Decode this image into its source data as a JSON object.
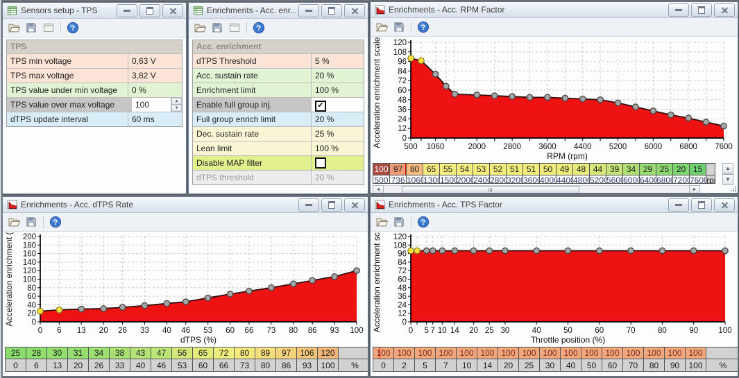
{
  "app": {
    "background": "#70747a"
  },
  "windows": {
    "sensors": {
      "title": "Sensors setup - TPS",
      "toolbar": [
        "open-file",
        "save-file",
        "window-view",
        "help"
      ],
      "table": {
        "header": "TPS",
        "rows": [
          {
            "label": "TPS min voltage",
            "value": "0,63 V",
            "bg": "#fbe3d6",
            "type": "text"
          },
          {
            "label": "TPS max voltage",
            "value": "3,82 V",
            "bg": "#fbe3d6",
            "type": "text"
          },
          {
            "label": "TPS value under min voltage",
            "value": "0 %",
            "bg": "#e1f3d3",
            "type": "text"
          },
          {
            "label": "TPS value over  max voltage",
            "value": "100",
            "bg": "#c6c6c6",
            "type": "spinner"
          },
          {
            "label": "dTPS update interval",
            "value": "60 ms",
            "bg": "#d9edf9",
            "type": "text"
          }
        ]
      }
    },
    "enrichment": {
      "title": "Enrichments - Acc. enr...",
      "toolbar": [
        "open-file",
        "save-file",
        "window-view",
        "help"
      ],
      "table": {
        "header": "Acc. enrichment",
        "rows": [
          {
            "label": "dTPS Threshold",
            "value": "5 %",
            "bg": "#fbe3d6",
            "type": "text"
          },
          {
            "label": "Acc. sustain rate",
            "value": "20 %",
            "bg": "#e1f3d3",
            "type": "text"
          },
          {
            "label": "Enrichment limit",
            "value": "100 %",
            "bg": "#e1f3d3",
            "type": "text"
          },
          {
            "label": "Enable full group inj.",
            "value": "checked",
            "bg": "#c6c6c6",
            "type": "checkbox-checked"
          },
          {
            "label": "Full group enrich limit",
            "value": "20 %",
            "bg": "#d9edf9",
            "type": "text"
          },
          {
            "label": "Dec. sustain rate",
            "value": "25 %",
            "bg": "#faf6d5",
            "type": "text"
          },
          {
            "label": "Lean limit",
            "value": "100 %",
            "bg": "#faf6d5",
            "type": "text"
          },
          {
            "label": "Disable MAP filter",
            "value": "unchecked",
            "bg": "#e2ef8d",
            "type": "checkbox-unchecked"
          },
          {
            "label": "dTPS threshold",
            "value": "20 %",
            "bg": "#ececec",
            "type": "disabled"
          }
        ]
      }
    },
    "rpm_factor": {
      "title": "Enrichments - Acc. RPM Factor",
      "toolbar": [
        "open-file",
        "save-file",
        "help"
      ]
    },
    "dtps_rate": {
      "title": "Enrichments - Acc. dTPS Rate",
      "toolbar": [
        "open-file",
        "save-file",
        "help"
      ]
    },
    "tps_factor": {
      "title": "Enrichments - Acc. TPS Factor",
      "toolbar": [
        "open-file",
        "save-file",
        "help"
      ]
    }
  },
  "chart_data": [
    {
      "id": "rpm",
      "type": "area",
      "title": "Enrichments - Acc. RPM Factor",
      "xlabel": "RPM (rpm)",
      "ylabel": "Acceleration enrichment scale (",
      "ylim": [
        0,
        120
      ],
      "ytick_step": 12,
      "grid": true,
      "legend": false,
      "x": [
        500,
        736,
        1060,
        1300,
        1500,
        2000,
        2400,
        2800,
        3200,
        3600,
        4000,
        4400,
        4800,
        5200,
        5600,
        6000,
        6400,
        6800,
        7200,
        7600
      ],
      "values": [
        100,
        97,
        80,
        65,
        55,
        54,
        53,
        52,
        51,
        51,
        50,
        49,
        48,
        44,
        39,
        34,
        29,
        25,
        20,
        15
      ],
      "x_labeled": [
        500,
        1060,
        2000,
        2800,
        3600,
        4400,
        5200,
        6000,
        6800,
        7600
      ],
      "selected_points": [
        0,
        1
      ],
      "fill": "#ee1212",
      "line": "#2f0f0f",
      "table": {
        "value_row": [
          "100",
          "97",
          "80",
          "65",
          "55",
          "54",
          "53",
          "52",
          "51",
          "51",
          "50",
          "49",
          "48",
          "44",
          "39",
          "34",
          "29",
          "25",
          "20",
          "15"
        ],
        "value_colors": [
          "#a84a42",
          "#ef9d78",
          "#f3bc7e",
          "#f4e97e",
          "#f4ee7e",
          "#f4ee7e",
          "#f4ee7e",
          "#f2ed7d",
          "#f1ed7d",
          "#f1ed7d",
          "#efec7d",
          "#ebeb7c",
          "#e7ea7b",
          "#d7e77a",
          "#c3e377",
          "#aedf75",
          "#99db73",
          "#8cd872",
          "#7dd470",
          "#6ed06e"
        ],
        "value_text_colors": [
          "#ffffff",
          "#1a1a1a",
          "#1a1a1a",
          "#1a1a1a",
          "#1a1a1a",
          "#1a1a1a",
          "#1a1a1a",
          "#1a1a1a",
          "#1a1a1a",
          "#1a1a1a",
          "#1a1a1a",
          "#1a1a1a",
          "#1a1a1a",
          "#1a1a1a",
          "#1a1a1a",
          "#1a1a1a",
          "#1a1a1a",
          "#1a1a1a",
          "#1a1a1a",
          "#1a1a1a"
        ],
        "x_row": [
          "500",
          "736",
          "1060",
          "1300",
          "1500",
          "2000",
          "2400",
          "2800",
          "3200",
          "3600",
          "4000",
          "4400",
          "4800",
          "5200",
          "5600",
          "6000",
          "6400",
          "6800",
          "7200",
          "7600"
        ],
        "x_row_bg": "#ffffff",
        "x_row_text": "#31406e",
        "unit": "rpm",
        "cursor_cell": 2,
        "cursor_frac": 0,
        "clipped_x_row": true,
        "scrollbar": true
      }
    },
    {
      "id": "dtps",
      "type": "area",
      "title": "Enrichments - Acc. dTPS Rate",
      "xlabel": "dTPS (%)",
      "ylabel": "Acceleration enrichment (",
      "ylim": [
        0,
        200
      ],
      "ytick_step": 20,
      "grid": true,
      "legend": false,
      "x": [
        0,
        6,
        13,
        20,
        26,
        33,
        40,
        46,
        53,
        60,
        66,
        73,
        80,
        86,
        93,
        100
      ],
      "values": [
        25,
        28,
        30,
        31,
        34,
        38,
        43,
        47,
        56,
        65,
        72,
        80,
        89,
        97,
        106,
        120
      ],
      "x_labeled": [
        0,
        6,
        13,
        20,
        26,
        33,
        40,
        46,
        53,
        60,
        66,
        73,
        80,
        86,
        93,
        100
      ],
      "selected_points": [
        0,
        1
      ],
      "fill": "#ee1212",
      "line": "#2f0f0f",
      "table": {
        "value_row": [
          "25",
          "28",
          "30",
          "31",
          "34",
          "38",
          "43",
          "47",
          "56",
          "65",
          "72",
          "80",
          "89",
          "97",
          "106",
          "120"
        ],
        "value_colors": [
          "#8bdc6d",
          "#8fdd6e",
          "#93de6f",
          "#95de6f",
          "#9ddf71",
          "#a7e172",
          "#b3e374",
          "#bde476",
          "#d3e879",
          "#e3eb7b",
          "#eeed7d",
          "#f4e97e",
          "#f4de7d",
          "#f3d47c",
          "#f1c77a",
          "#efb678"
        ],
        "value_text_colors": [
          "#1a1a1a",
          "#1a1a1a",
          "#1a1a1a",
          "#1a1a1a",
          "#1a1a1a",
          "#1a1a1a",
          "#1a1a1a",
          "#1a1a1a",
          "#1a1a1a",
          "#1a1a1a",
          "#1a1a1a",
          "#1a1a1a",
          "#1a1a1a",
          "#1a1a1a",
          "#1a1a1a",
          "#1a1a1a"
        ],
        "x_row": [
          "0",
          "6",
          "13",
          "20",
          "26",
          "33",
          "40",
          "46",
          "53",
          "60",
          "66",
          "73",
          "80",
          "86",
          "93",
          "100"
        ],
        "x_row_bg": "#d2d2d2",
        "x_row_text": "#1a1a1a",
        "unit": "%",
        "clipped_x_row": false,
        "scrollbar": false
      }
    },
    {
      "id": "tps",
      "type": "area",
      "title": "Enrichments - Acc. TPS Factor",
      "xlabel": "Throttle position (%)",
      "ylabel": "Acceleration enrichment scal",
      "ylim": [
        0,
        120
      ],
      "ytick_step": 12,
      "grid": true,
      "legend": false,
      "x": [
        0,
        2,
        5,
        7,
        10,
        14,
        20,
        25,
        30,
        40,
        50,
        60,
        70,
        80,
        90,
        100
      ],
      "values": [
        100,
        100,
        100,
        100,
        100,
        100,
        100,
        100,
        100,
        100,
        100,
        100,
        100,
        100,
        100,
        100
      ],
      "x_labeled": [
        0,
        5,
        7,
        10,
        14,
        20,
        25,
        30,
        40,
        50,
        60,
        70,
        80,
        90,
        100
      ],
      "selected_points": [
        0,
        1
      ],
      "fill": "#ee1212",
      "line": "#2f0f0f",
      "table": {
        "value_row": [
          "100",
          "100",
          "100",
          "100",
          "100",
          "100",
          "100",
          "100",
          "100",
          "100",
          "100",
          "100",
          "100",
          "100",
          "100",
          "100"
        ],
        "value_colors": [
          "#f1a77e",
          "#f1a77e",
          "#f1a77e",
          "#f1a77e",
          "#f1a77e",
          "#f1a77e",
          "#f1a77e",
          "#f1a77e",
          "#f1a77e",
          "#f1a77e",
          "#f1a77e",
          "#f1a77e",
          "#f1a77e",
          "#f1a77e",
          "#f1a77e",
          "#f1a77e"
        ],
        "value_text_colors": [
          "#7c2a1c",
          "#7c2a1c",
          "#7c2a1c",
          "#7c2a1c",
          "#7c2a1c",
          "#7c2a1c",
          "#7c2a1c",
          "#7c2a1c",
          "#7c2a1c",
          "#7c2a1c",
          "#7c2a1c",
          "#7c2a1c",
          "#7c2a1c",
          "#7c2a1c",
          "#7c2a1c",
          "#7c2a1c"
        ],
        "x_row": [
          "0",
          "2",
          "5",
          "7",
          "10",
          "14",
          "20",
          "25",
          "30",
          "40",
          "50",
          "60",
          "70",
          "80",
          "90",
          "100"
        ],
        "x_row_bg": "#d2d2d2",
        "x_row_text": "#1a1a1a",
        "unit": "%",
        "cursor_cell": 0,
        "cursor_frac": 0.3,
        "clipped_x_row": false,
        "scrollbar": false
      }
    }
  ]
}
